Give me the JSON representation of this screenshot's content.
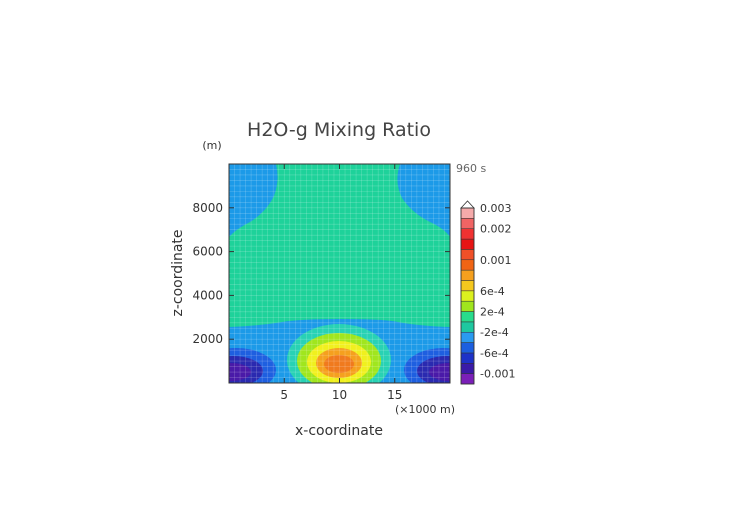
{
  "chart_data": {
    "type": "heatmap",
    "title": "H2O-g Mixing Ratio",
    "time_label": "960 s",
    "xlabel": "x-coordinate",
    "x_unit_label": "(×1000 m)",
    "ylabel": "z-coordinate",
    "y_unit_label": "(m)",
    "x_range": [
      0,
      20
    ],
    "y_range": [
      0,
      10000
    ],
    "x_tick_labels": [
      "5",
      "10",
      "15"
    ],
    "x_tick_values": [
      5,
      10,
      15
    ],
    "y_tick_labels": [
      "2000",
      "4000",
      "6000",
      "8000"
    ],
    "y_tick_values": [
      2000,
      4000,
      6000,
      8000
    ],
    "grid": true,
    "colorbar": {
      "colors": [
        "#7a1fb8",
        "#3a1aa8",
        "#1e32c8",
        "#1c5fe0",
        "#2a9af0",
        "#1ec8a0",
        "#28dc8c",
        "#a0e61e",
        "#dcf01e",
        "#f5c81e",
        "#f5a01e",
        "#f06414",
        "#f05028",
        "#e61414",
        "#f03232",
        "#f06464",
        "#f5aaaa"
      ],
      "labels": [
        "-0.001",
        "-6e-4",
        "-2e-4",
        "2e-4",
        "6e-4",
        "0.001",
        "0.002",
        "0.003"
      ],
      "label_bands": [
        1,
        3,
        5,
        7,
        9,
        12,
        15,
        17
      ]
    }
  },
  "labels": {
    "title": "H2O-g Mixing Ratio",
    "time": "960 s",
    "y_unit": "(m)",
    "x_unit": "(×1000 m)",
    "xlabel": "x-coordinate",
    "ylabel": "z-coordinate"
  }
}
